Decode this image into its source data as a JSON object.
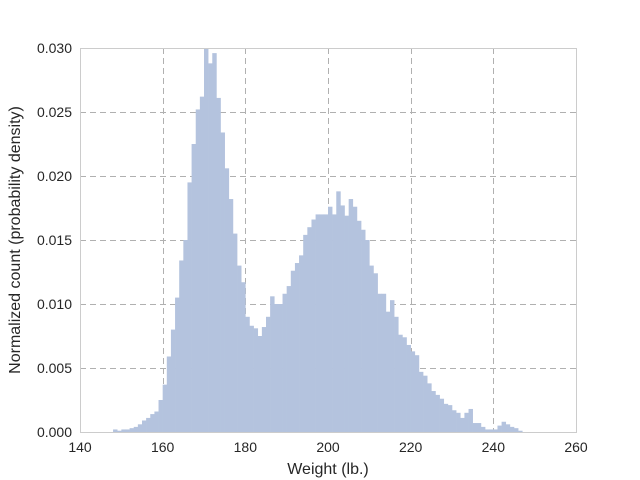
{
  "chart_data": {
    "type": "bar",
    "title": "",
    "xlabel": "Weight (lb.)",
    "ylabel": "Normalized count (probability density)",
    "xlim": [
      140,
      260
    ],
    "ylim": [
      0,
      0.03
    ],
    "x_ticks": [
      "140",
      "160",
      "180",
      "200",
      "220",
      "240",
      "260"
    ],
    "x_tick_values": [
      140,
      160,
      180,
      200,
      220,
      240,
      260
    ],
    "y_ticks": [
      "0.000",
      "0.005",
      "0.010",
      "0.015",
      "0.020",
      "0.025",
      "0.030"
    ],
    "y_tick_values": [
      0,
      0.005,
      0.01,
      0.015,
      0.02,
      0.025,
      0.03
    ],
    "grid": true,
    "bar_color": "#b4c3de",
    "bin_start": 148,
    "bin_width": 1,
    "values": [
      0.0002,
      0.0001,
      0.0002,
      0.0002,
      0.0003,
      0.0004,
      0.0006,
      0.0009,
      0.0011,
      0.0014,
      0.0016,
      0.0025,
      0.0037,
      0.0059,
      0.008,
      0.0105,
      0.0134,
      0.015,
      0.0195,
      0.0225,
      0.0252,
      0.0262,
      0.03,
      0.0288,
      0.0296,
      0.0261,
      0.0234,
      0.0206,
      0.0182,
      0.0155,
      0.013,
      0.0117,
      0.009,
      0.0083,
      0.0081,
      0.0075,
      0.0082,
      0.009,
      0.0106,
      0.01,
      0.01,
      0.0108,
      0.0114,
      0.0126,
      0.0132,
      0.0138,
      0.0154,
      0.016,
      0.0166,
      0.017,
      0.017,
      0.017,
      0.0176,
      0.017,
      0.0188,
      0.0177,
      0.0169,
      0.0182,
      0.0176,
      0.0165,
      0.0158,
      0.015,
      0.013,
      0.0124,
      0.0108,
      0.0108,
      0.0094,
      0.0103,
      0.009,
      0.0076,
      0.0074,
      0.0068,
      0.0063,
      0.006,
      0.0047,
      0.0044,
      0.0038,
      0.0032,
      0.0029,
      0.0026,
      0.0022,
      0.0021,
      0.0017,
      0.0015,
      0.0011,
      0.0015,
      0.0018,
      0.0007,
      0.0007,
      0.0004,
      0.0002,
      0.0002,
      0.0002,
      0.0005,
      0.0008,
      0.0006,
      0.0004,
      0.0003,
      0.0001
    ]
  }
}
